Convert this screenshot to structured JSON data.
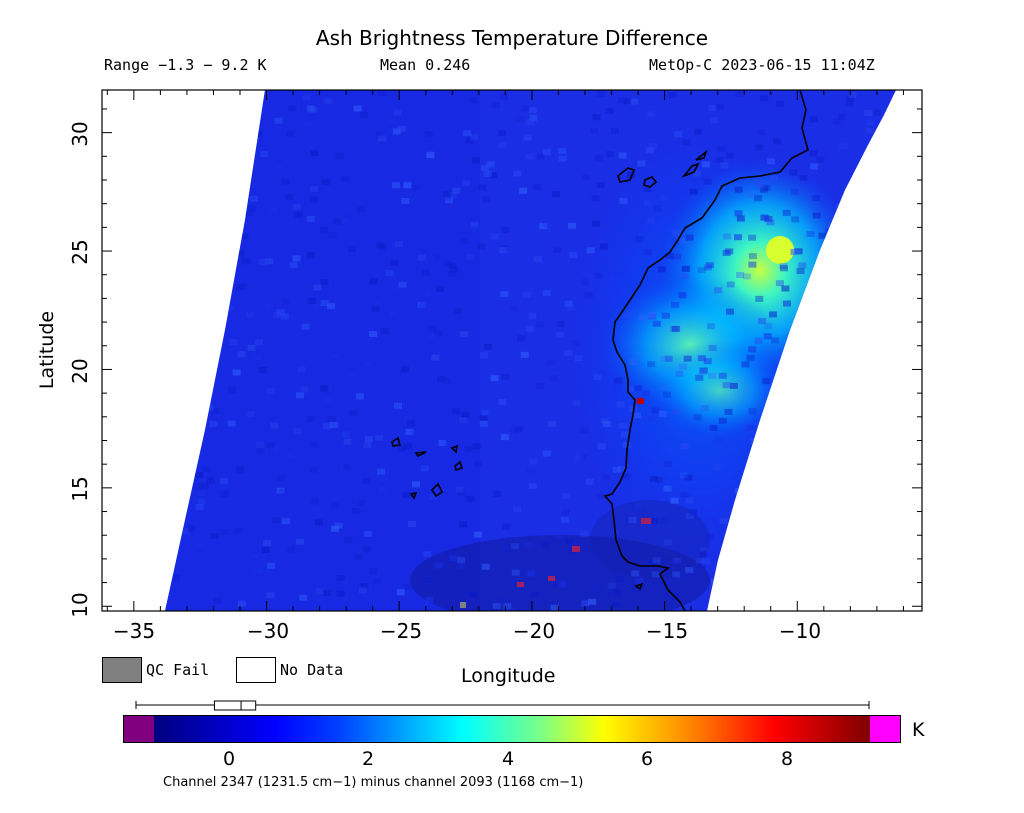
{
  "header": {
    "title": "Ash Brightness Temperature Difference",
    "range": "Range −1.3 − 9.2 K",
    "mean": "Mean 0.246",
    "satellite": "MetOp-C 2023-06-15 11:04Z"
  },
  "axes": {
    "xlabel": "Longitude",
    "ylabel": "Latitude",
    "xticks": [
      "−35",
      "−30",
      "−25",
      "−20",
      "−15",
      "−10"
    ],
    "yticks": [
      "30",
      "25",
      "20",
      "15",
      "10"
    ],
    "xlim": [
      -36.2,
      -5.3
    ],
    "ylim": [
      9.8,
      31.8
    ]
  },
  "legend": {
    "qc_fail": "QC Fail",
    "no_data": "No Data",
    "qc_color": "#808080",
    "no_data_color": "#ffffff"
  },
  "colorbar": {
    "unit": "K",
    "ticks": [
      "0",
      "2",
      "4",
      "6",
      "8"
    ],
    "range": [
      -1.3,
      9.2
    ],
    "boxplot": {
      "min": -1.3,
      "q1": -0.15,
      "median": 0.05,
      "q3": 0.25,
      "max": 9.2
    },
    "footnote": "Channel 2347 (1231.5 cm−1) minus channel 2093 (1168 cm−1)",
    "under_color": "#800080",
    "over_color": "#ff00ff"
  },
  "swath": {
    "background_color": "#1e2ee8",
    "plume_center_lonlat": [
      -11.0,
      23.0
    ],
    "plume_peak_value": 5.0
  }
}
